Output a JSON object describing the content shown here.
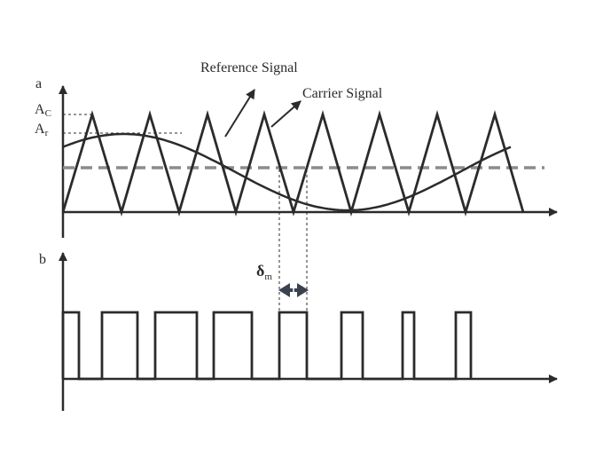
{
  "panels": {
    "a": {
      "label": "a",
      "y_labels": {
        "ac_main": "A",
        "ac_sub": "C",
        "ar_main": "A",
        "ar_sub": "r"
      },
      "annotations": {
        "reference": "Reference Signal",
        "carrier": "Carrier Signal"
      }
    },
    "b": {
      "label": "b",
      "delta_main": "δ",
      "delta_sub": "m"
    }
  },
  "colors": {
    "axis": "#2b2b2b",
    "carrier": "#2b2b2b",
    "reference": "#2b2b2b",
    "dc_level": "#8c8c8c",
    "pulse": "#2b2b2b",
    "arrow": "#3a4250"
  },
  "signals": {
    "carrier_periods": 8,
    "reference_cycles": 1,
    "dc_level_fraction_of_peak": 0.46,
    "pulse_count": 8
  }
}
